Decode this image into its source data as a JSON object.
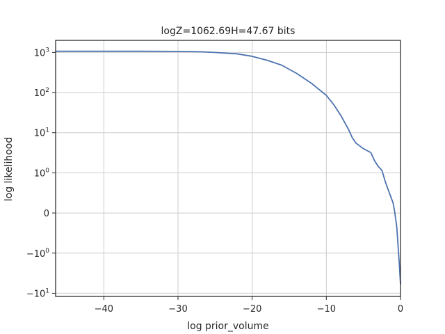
{
  "chart_data": {
    "type": "line",
    "title": "logZ=1062.69H=47.67 bits",
    "xlabel": "log prior_volume",
    "ylabel": "log likelihood",
    "xlim": [
      -46.5,
      0
    ],
    "y_scale": "symlog",
    "y_linthresh": 1,
    "ylim": [
      -12,
      2000
    ],
    "grid": true,
    "x_ticks": [
      {
        "value": -40,
        "label": "−40"
      },
      {
        "value": -30,
        "label": "−30"
      },
      {
        "value": -20,
        "label": "−20"
      },
      {
        "value": -10,
        "label": "−10"
      },
      {
        "value": 0,
        "label": "0"
      }
    ],
    "y_ticks": [
      {
        "value": 1000,
        "base": "10",
        "exp": "3"
      },
      {
        "value": 100,
        "base": "10",
        "exp": "2"
      },
      {
        "value": 10,
        "base": "10",
        "exp": "1"
      },
      {
        "value": 1,
        "base": "10",
        "exp": "0"
      },
      {
        "value": 0,
        "base": "0",
        "exp": ""
      },
      {
        "value": -1,
        "base": "−10",
        "exp": "0"
      },
      {
        "value": -10,
        "base": "−10",
        "exp": "1"
      }
    ],
    "series": [
      {
        "color": "#4c72b0",
        "x": [
          -46.5,
          -40,
          -35,
          -30,
          -27,
          -25,
          -22,
          -20,
          -18,
          -16,
          -14,
          -12,
          -10,
          -9,
          -8,
          -7,
          -6.5,
          -6,
          -5,
          -4,
          -3.5,
          -3,
          -2.5,
          -2,
          -1.5,
          -1,
          -0.8,
          -0.5,
          -0.3,
          -0.15,
          0
        ],
        "y": [
          1070,
          1070,
          1068,
          1060,
          1040,
          1000,
          920,
          800,
          640,
          480,
          300,
          170,
          85,
          50,
          26,
          12,
          7.5,
          5.5,
          4,
          3.2,
          2,
          1.45,
          1.15,
          0.75,
          0.5,
          0.25,
          0.05,
          -0.35,
          -0.9,
          -2,
          -6
        ]
      }
    ]
  }
}
